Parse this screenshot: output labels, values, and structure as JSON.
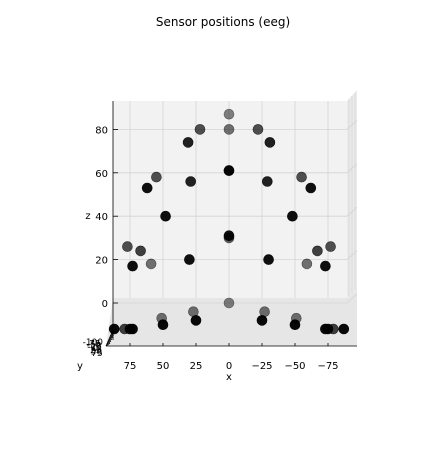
{
  "chart_data": {
    "type": "scatter",
    "projection": "3d",
    "title": "Sensor positions (eeg)",
    "xlabel": "x",
    "ylabel": "y",
    "zlabel": "z",
    "x_inverted": true,
    "xticks": [
      75,
      50,
      25,
      0,
      -25,
      -50,
      -75
    ],
    "xtick_labels": [
      "75",
      "50",
      "25",
      "0",
      "−25",
      "−50",
      "−75"
    ],
    "zticks": [
      0,
      20,
      40,
      60,
      80
    ],
    "zlim": [
      -8,
      92
    ],
    "ytick_labels": [
      "75",
      "50",
      "25",
      "0",
      "-25",
      "-50",
      "-75",
      "-100"
    ],
    "grid": true,
    "marker_color": "#000000",
    "series": [
      {
        "name": "",
        "x": [
          0,
          22,
          31,
          -22,
          -31,
          0,
          55,
          62,
          29,
          0,
          -29,
          -55,
          -62,
          48,
          67,
          0,
          -48,
          -67,
          77,
          73,
          59,
          30,
          0,
          -30,
          -59,
          -73,
          -77,
          79,
          75,
          51,
          27,
          0,
          -27,
          -51,
          -75,
          -79,
          87,
          73,
          50,
          25,
          0,
          -25,
          -50,
          -73,
          -87
        ],
        "z": [
          87,
          80,
          74,
          80,
          74,
          61,
          58,
          53,
          56,
          31,
          56,
          58,
          53,
          40,
          24,
          30,
          40,
          24,
          26,
          17,
          18,
          20,
          61,
          20,
          18,
          17,
          26,
          -12,
          -12,
          -7,
          -4,
          0,
          -4,
          -7,
          -12,
          -12,
          -12,
          -12,
          -10,
          -8,
          80,
          -8,
          -10,
          -12,
          -12
        ],
        "depth": [
          0.2,
          0.5,
          0.8,
          0.5,
          0.8,
          0.4,
          0.5,
          0.9,
          0.8,
          0.9,
          0.8,
          0.5,
          0.9,
          0.9,
          0.6,
          0.4,
          0.9,
          0.6,
          0.5,
          0.9,
          0.3,
          0.9,
          0.9,
          0.9,
          0.3,
          0.9,
          0.5,
          0.6,
          0.9,
          0.3,
          0.3,
          0.2,
          0.3,
          0.3,
          0.9,
          0.6,
          0.95,
          0.95,
          0.95,
          0.95,
          0.3,
          0.95,
          0.95,
          0.95,
          0.95
        ]
      }
    ]
  }
}
